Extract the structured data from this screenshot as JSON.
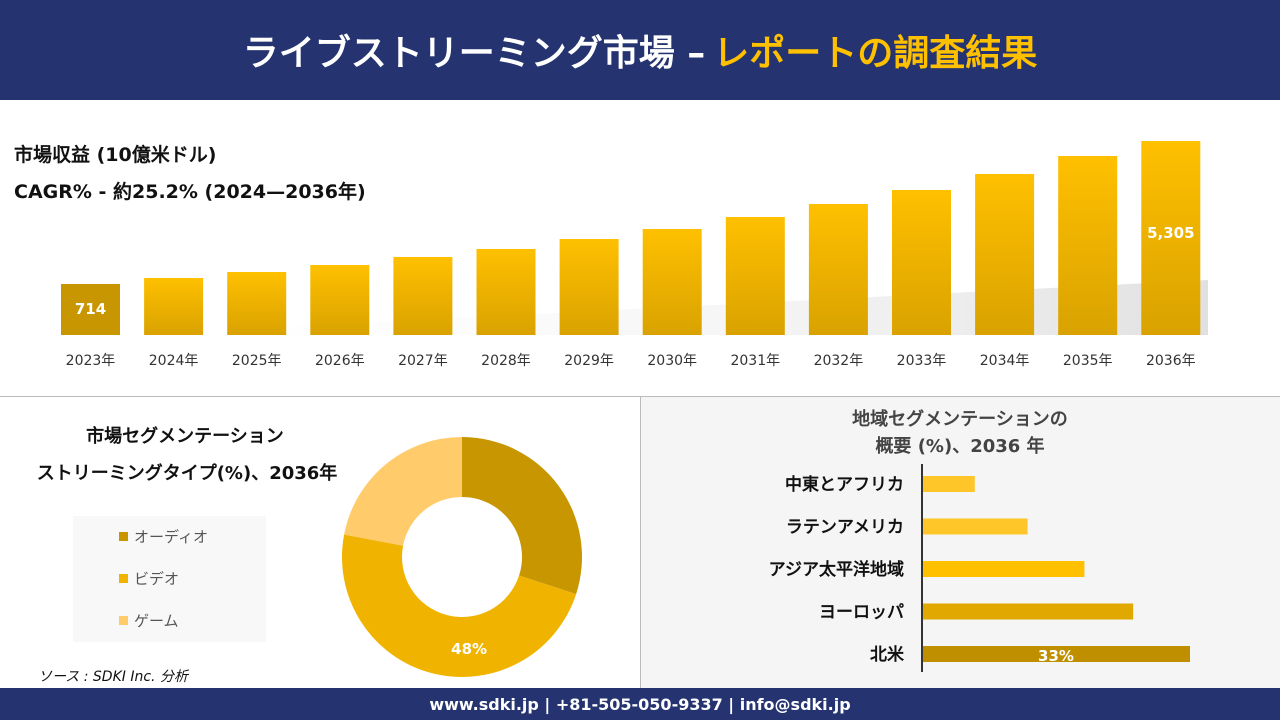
{
  "header": {
    "title_main": "ライブストリーミング市場 –",
    "title_accent": "レポートの調査結果"
  },
  "colors": {
    "navy": "#253470",
    "accent": "#ffc000",
    "audio": "#c89600",
    "video": "#f0b400",
    "game": "#ffcb6b"
  },
  "chart_data": [
    {
      "type": "bar",
      "title": "市場収益 (10億米ドル)",
      "subtitle": "CAGR% - 約25.2% (2024—2036年)",
      "categories": [
        "2023年",
        "2024年",
        "2025年",
        "2026年",
        "2027年",
        "2028年",
        "2029年",
        "2030年",
        "2031年",
        "2032年",
        "2033年",
        "2034年",
        "2035年",
        "2036年"
      ],
      "values": [
        714,
        907,
        1099,
        1324,
        1581,
        1838,
        2159,
        2480,
        2865,
        3282,
        3732,
        4246,
        4824,
        5305
      ],
      "data_labels": {
        "0": "714",
        "13": "5,305"
      }
    },
    {
      "type": "pie",
      "title_line1": "市場セグメンテーション",
      "title_line2": "ストリーミングタイプ(%)、2036年",
      "labels": [
        "オーディオ",
        "ビデオ",
        "ゲーム"
      ],
      "values": [
        30,
        48,
        22
      ],
      "data_labels": {
        "1": "48%"
      },
      "hole": true,
      "legend": "left"
    },
    {
      "type": "bar",
      "orientation": "horizontal",
      "title_line1": "地域セグメンテーションの",
      "title_line2": "概要 (%)、2036 年",
      "categories": [
        "中東とアフリカ",
        "ラテンアメリカ",
        "アジア太平洋地域",
        "ヨーロッパ",
        "北米"
      ],
      "values": [
        6.5,
        13,
        20,
        26,
        33
      ],
      "data_labels": {
        "4": "33%"
      },
      "bar_colors": [
        "#ffc629",
        "#ffc629",
        "#ffc000",
        "#e0a800",
        "#c08f00"
      ]
    }
  ],
  "source": "ソース : SDKI Inc. 分析",
  "footer": "www.sdki.jp | +81-505-050-9337 | info@sdki.jp"
}
